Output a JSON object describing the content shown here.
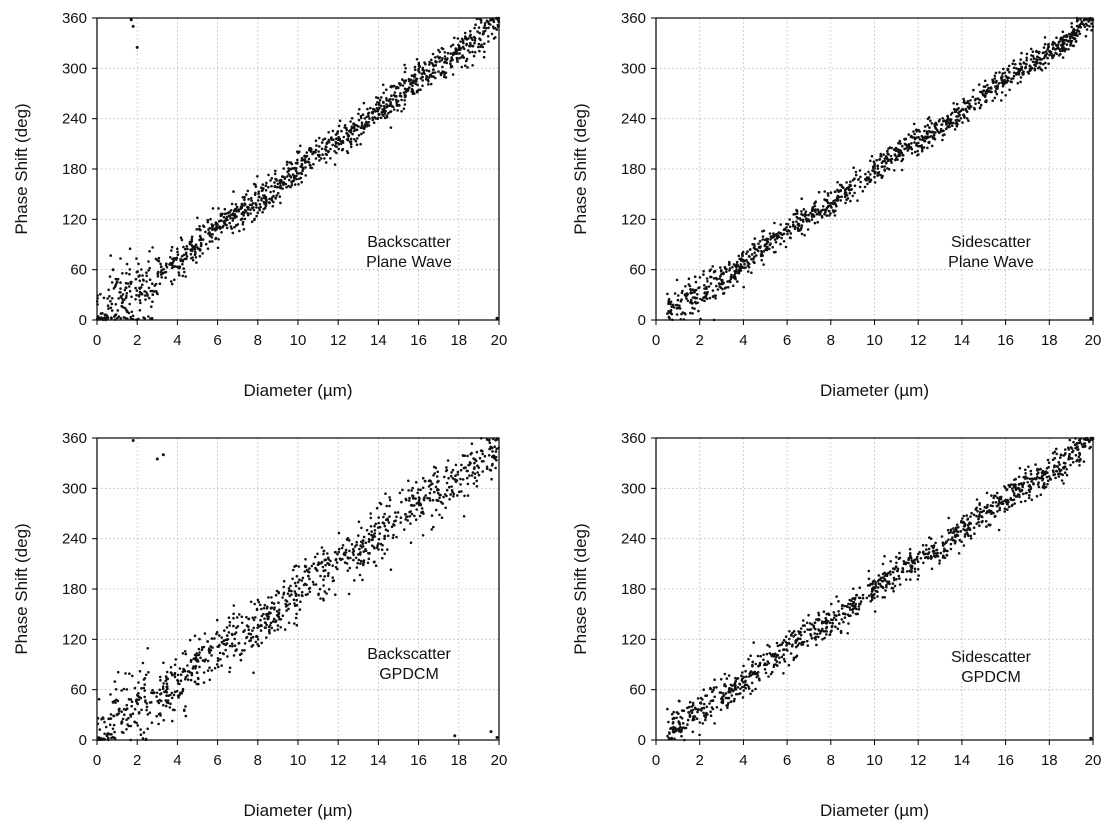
{
  "figure": {
    "colors": {
      "points": "#111111",
      "grid": "#b5b5b5",
      "axes": "#000000",
      "background": "#ffffff"
    }
  },
  "chart_data": [
    {
      "type": "scatter",
      "title": "",
      "annotation": [
        "Backscatter",
        "Plane Wave"
      ],
      "xlabel": "Diameter (µm)",
      "ylabel": "Phase Shift (deg)",
      "xlim": [
        0,
        20
      ],
      "ylim": [
        0,
        360
      ],
      "xticks": [
        0,
        2,
        4,
        6,
        8,
        10,
        12,
        14,
        16,
        18,
        20
      ],
      "yticks": [
        0,
        60,
        120,
        180,
        240,
        300,
        360
      ],
      "grid": true,
      "legend": "none",
      "trend": {
        "x": [
          0,
          20
        ],
        "y": [
          0,
          358
        ]
      },
      "spread_deg": 10,
      "spread_low_diameter_deg": 22,
      "n_points": 1200,
      "outliers": [
        {
          "x": 1.7,
          "y": 358
        },
        {
          "x": 1.8,
          "y": 350
        },
        {
          "x": 2.0,
          "y": 325
        },
        {
          "x": 0.8,
          "y": 60
        },
        {
          "x": 1.0,
          "y": 45
        },
        {
          "x": 1.2,
          "y": 28
        },
        {
          "x": 1.5,
          "y": 10
        },
        {
          "x": 19.9,
          "y": 2
        }
      ]
    },
    {
      "type": "scatter",
      "title": "",
      "annotation": [
        "Sidescatter",
        "Plane Wave"
      ],
      "xlabel": "Diameter (µm)",
      "ylabel": "Phase Shift (deg)",
      "xlim": [
        0,
        20
      ],
      "ylim": [
        0,
        360
      ],
      "xticks": [
        0,
        2,
        4,
        6,
        8,
        10,
        12,
        14,
        16,
        18,
        20
      ],
      "yticks": [
        0,
        60,
        120,
        180,
        240,
        300,
        360
      ],
      "grid": true,
      "legend": "none",
      "trend": {
        "x": [
          0.5,
          20
        ],
        "y": [
          6,
          358
        ]
      },
      "spread_deg": 8,
      "spread_low_diameter_deg": 12,
      "n_points": 1200,
      "outliers": [
        {
          "x": 19.9,
          "y": 2
        }
      ]
    },
    {
      "type": "scatter",
      "title": "",
      "annotation": [
        "Backscatter",
        "GPDCM"
      ],
      "xlabel": "Diameter (µm)",
      "ylabel": "Phase Shift (deg)",
      "xlim": [
        0,
        20
      ],
      "ylim": [
        0,
        360
      ],
      "xticks": [
        0,
        2,
        4,
        6,
        8,
        10,
        12,
        14,
        16,
        18,
        20
      ],
      "yticks": [
        0,
        60,
        120,
        180,
        240,
        300,
        360
      ],
      "grid": true,
      "legend": "none",
      "trend": {
        "x": [
          0,
          20
        ],
        "y": [
          0,
          352
        ]
      },
      "spread_deg": 16,
      "spread_low_diameter_deg": 22,
      "n_points": 1000,
      "outliers": [
        {
          "x": 1.8,
          "y": 357
        },
        {
          "x": 3.0,
          "y": 335
        },
        {
          "x": 3.3,
          "y": 340
        },
        {
          "x": 0.8,
          "y": 45
        },
        {
          "x": 1.0,
          "y": 30
        },
        {
          "x": 0.5,
          "y": 5
        },
        {
          "x": 17.8,
          "y": 5
        },
        {
          "x": 19.6,
          "y": 10
        },
        {
          "x": 19.9,
          "y": 3
        }
      ]
    },
    {
      "type": "scatter",
      "title": "",
      "annotation": [
        "Sidescatter",
        "GPDCM"
      ],
      "xlabel": "Diameter (µm)",
      "ylabel": "Phase Shift (deg)",
      "xlim": [
        0,
        20
      ],
      "ylim": [
        0,
        360
      ],
      "xticks": [
        0,
        2,
        4,
        6,
        8,
        10,
        12,
        14,
        16,
        18,
        20
      ],
      "yticks": [
        0,
        60,
        120,
        180,
        240,
        300,
        360
      ],
      "grid": true,
      "legend": "none",
      "trend": {
        "x": [
          0.5,
          20
        ],
        "y": [
          8,
          358
        ]
      },
      "spread_deg": 10,
      "spread_low_diameter_deg": 12,
      "n_points": 1100,
      "outliers": [
        {
          "x": 19.9,
          "y": 2
        }
      ]
    }
  ]
}
